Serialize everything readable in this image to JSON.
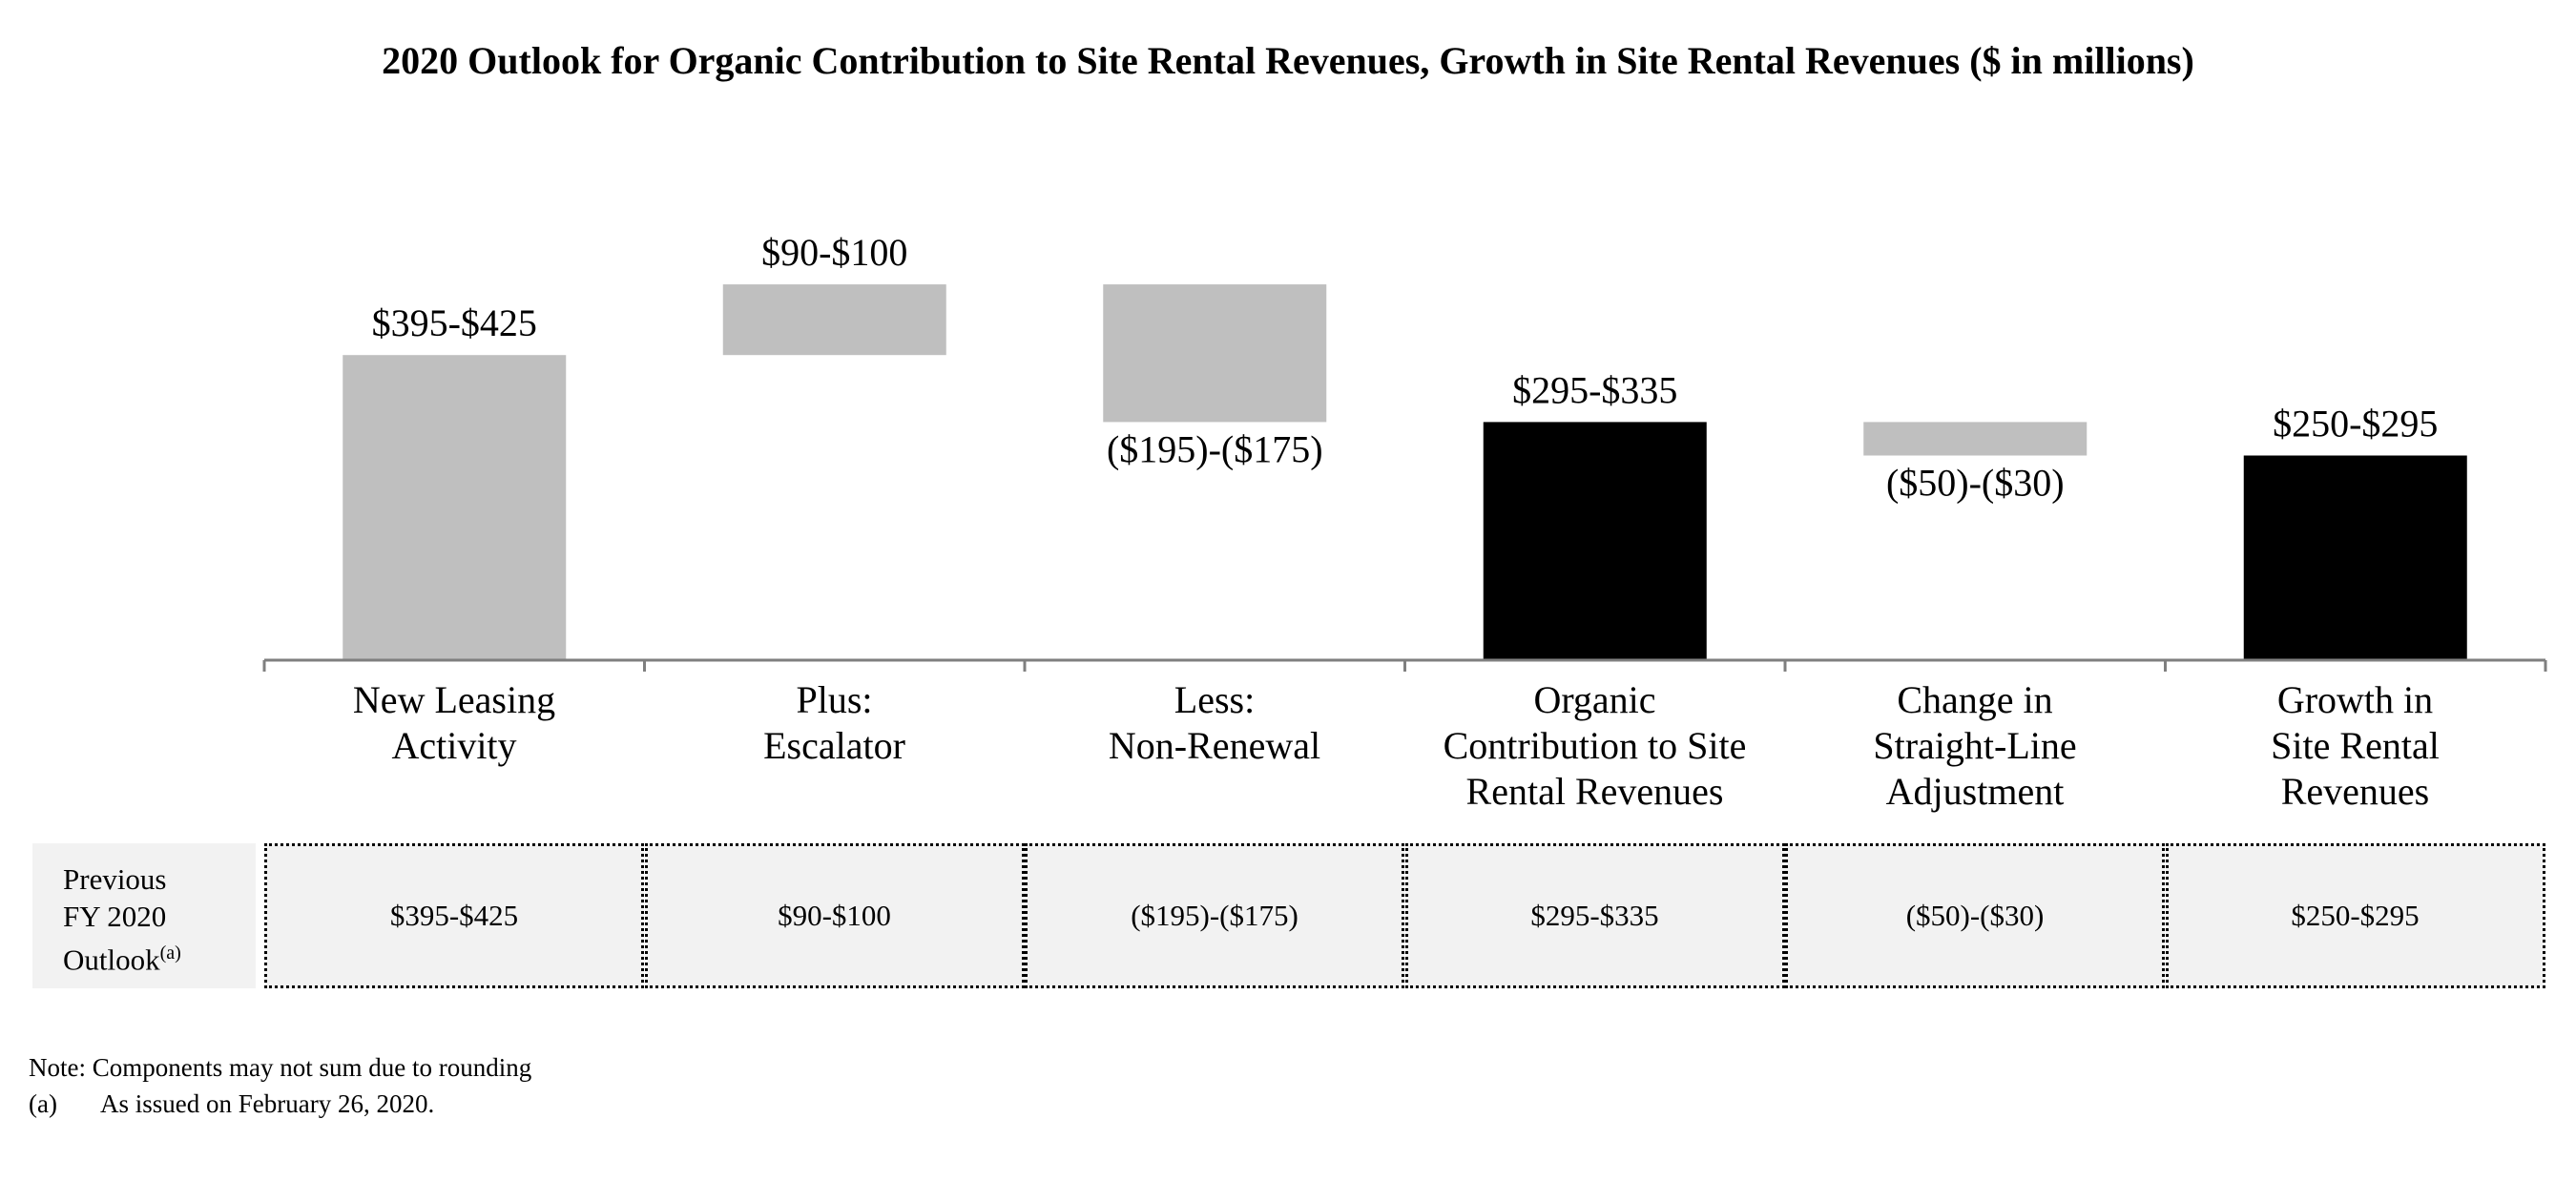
{
  "chart_data": {
    "type": "bar",
    "subtype": "waterfall",
    "title": "2020 Outlook for Organic Contribution to Site Rental Revenues, Growth in Site Rental Revenues ($ in millions)",
    "categories": [
      "New Leasing\nActivity",
      "Plus:\nEscalator",
      "Less:\nNon-Renewal",
      "Organic\nContribution to Site\nRental Revenues",
      "Change in\nStraight-Line\nAdjustment",
      "Growth in\nSite Rental\nRevenues"
    ],
    "bars": [
      {
        "label": "$395-$425",
        "start": 0,
        "end": 410,
        "kind": "increase",
        "color": "#bfbfbf",
        "label_position": "above"
      },
      {
        "label": "$90-$100",
        "start": 410,
        "end": 505,
        "kind": "increase",
        "color": "#bfbfbf",
        "label_position": "above"
      },
      {
        "label": "($195)-($175)",
        "start": 505,
        "end": 320,
        "kind": "decrease",
        "color": "#bfbfbf",
        "label_position": "below"
      },
      {
        "label": "$295-$335",
        "start": 0,
        "end": 320,
        "kind": "total",
        "color": "#000000",
        "label_position": "above"
      },
      {
        "label": "($50)-($30)",
        "start": 320,
        "end": 275,
        "kind": "decrease",
        "color": "#bfbfbf",
        "label_position": "below"
      },
      {
        "label": "$250-$295",
        "start": 0,
        "end": 275,
        "kind": "total",
        "color": "#000000",
        "label_position": "above"
      }
    ],
    "ylim": [
      0,
      560
    ]
  },
  "previous_outlook": {
    "header_lines": [
      "Previous",
      "FY 2020",
      "Outlook"
    ],
    "footnote_mark": "(a)",
    "values": [
      "$395-$425",
      "$90-$100",
      "($195)-($175)",
      "$295-$335",
      "($50)-($30)",
      "$250-$295"
    ]
  },
  "notes": {
    "line1": "Note: Components may not sum due to rounding",
    "footnote_mark": "(a)",
    "footnote_text": "As issued on February 26, 2020."
  }
}
